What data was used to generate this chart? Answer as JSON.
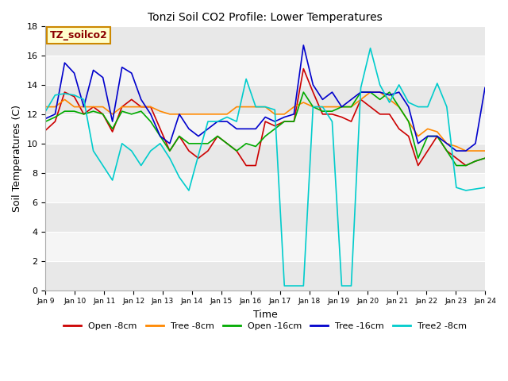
{
  "title": "Tonzi Soil CO2 Profile: Lower Temperatures",
  "xlabel": "Time",
  "ylabel": "Soil Temperatures (C)",
  "ylim": [
    0,
    18
  ],
  "xlim": [
    0,
    15
  ],
  "watermark_text": "TZ_soilco2",
  "xtick_labels": [
    "Jan 9",
    "Jan 10",
    "Jan 11",
    "Jan 12",
    "Jan 13",
    "Jan 14",
    "Jan 15",
    "Jan 16",
    "Jan 17",
    "Jan 18",
    "Jan 19",
    "Jan 20",
    "Jan 21",
    "Jan 22",
    "Jan 23",
    "Jan 24"
  ],
  "ytick_values": [
    0,
    2,
    4,
    6,
    8,
    10,
    12,
    14,
    16,
    18
  ],
  "band_colors": [
    "#e8e8e8",
    "#f5f5f5"
  ],
  "series": {
    "Open -8cm": {
      "color": "#cc0000",
      "values": [
        10.9,
        11.5,
        13.5,
        13.2,
        12.0,
        12.5,
        12.0,
        10.8,
        12.5,
        13.0,
        12.5,
        12.5,
        11.0,
        9.5,
        10.5,
        9.5,
        9.0,
        9.5,
        10.5,
        10.0,
        9.5,
        8.5,
        8.5,
        11.5,
        11.2,
        11.5,
        11.5,
        15.1,
        13.5,
        12.0,
        12.0,
        11.8,
        11.5,
        13.0,
        12.5,
        12.0,
        12.0,
        11.0,
        10.5,
        8.5,
        9.5,
        10.5,
        9.5,
        9.0,
        8.5,
        8.8,
        9.0
      ]
    },
    "Tree -8cm": {
      "color": "#ff8800",
      "values": [
        12.5,
        12.5,
        13.0,
        12.5,
        12.5,
        12.5,
        12.5,
        12.0,
        12.5,
        12.5,
        12.5,
        12.5,
        12.2,
        12.0,
        12.0,
        12.0,
        12.0,
        12.0,
        12.0,
        12.0,
        12.5,
        12.5,
        12.5,
        12.5,
        12.0,
        12.0,
        12.5,
        12.8,
        12.5,
        12.5,
        12.5,
        12.5,
        12.5,
        13.0,
        13.5,
        13.5,
        13.0,
        12.5,
        11.5,
        10.5,
        11.0,
        10.8,
        10.0,
        9.8,
        9.5,
        9.5,
        9.5
      ]
    },
    "Open -16cm": {
      "color": "#00aa00",
      "values": [
        11.5,
        11.8,
        12.2,
        12.2,
        12.0,
        12.2,
        12.0,
        11.0,
        12.2,
        12.0,
        12.2,
        11.5,
        10.5,
        9.5,
        10.5,
        10.0,
        10.0,
        10.0,
        10.5,
        10.0,
        9.5,
        10.0,
        9.8,
        10.5,
        11.0,
        11.5,
        11.5,
        13.5,
        12.5,
        12.2,
        12.2,
        12.5,
        12.5,
        13.5,
        13.5,
        13.0,
        13.5,
        12.5,
        11.5,
        9.0,
        10.5,
        10.5,
        9.5,
        8.5,
        8.5,
        8.8,
        9.0
      ]
    },
    "Tree -16cm": {
      "color": "#0000cc",
      "values": [
        11.7,
        12.0,
        15.5,
        14.8,
        12.5,
        15.0,
        14.5,
        11.5,
        15.2,
        14.8,
        13.0,
        12.0,
        10.5,
        10.0,
        12.0,
        11.0,
        10.5,
        11.0,
        11.5,
        11.5,
        11.0,
        11.0,
        11.0,
        11.8,
        11.5,
        11.8,
        12.0,
        16.7,
        14.0,
        13.0,
        13.5,
        12.5,
        13.0,
        13.5,
        13.5,
        13.5,
        13.3,
        13.5,
        12.5,
        10.0,
        10.5,
        10.5,
        10.0,
        9.5,
        9.5,
        10.0,
        13.8
      ]
    },
    "Tree2 -8cm": {
      "color": "#00cccc",
      "values": [
        12.2,
        13.3,
        13.4,
        13.3,
        13.0,
        9.5,
        8.5,
        7.5,
        10.0,
        9.5,
        8.5,
        9.5,
        10.0,
        9.0,
        7.7,
        6.8,
        9.2,
        11.5,
        11.5,
        11.8,
        11.5,
        14.4,
        12.5,
        12.5,
        12.3,
        0.3,
        0.3,
        0.3,
        12.5,
        12.5,
        11.5,
        0.3,
        0.3,
        13.8,
        16.5,
        14.0,
        12.8,
        14.0,
        12.8,
        12.5,
        12.5,
        14.1,
        12.5,
        7.0,
        6.8,
        6.9,
        7.0
      ]
    }
  }
}
